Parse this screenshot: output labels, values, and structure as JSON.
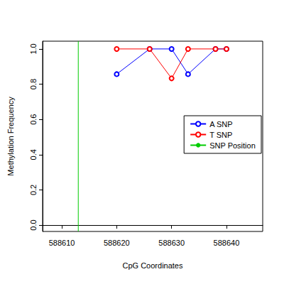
{
  "chart_data": {
    "type": "line",
    "x_label": "CpG Coordinates",
    "y_label": "Methylation Frequency",
    "xlim": [
      588606.5,
      588646.6
    ],
    "xticks": [
      588610,
      588620,
      588630,
      588640
    ],
    "ylim": [
      -0.036,
      1.044
    ],
    "yticks": [
      {
        "value": 0,
        "label": "0.0"
      },
      {
        "value": 0.2,
        "label": "0.2"
      },
      {
        "value": 0.4,
        "label": "0.4"
      },
      {
        "value": 0.6,
        "label": "0.6"
      },
      {
        "value": 0.8,
        "label": "0.8"
      },
      {
        "value": 1,
        "label": "1.0"
      }
    ],
    "grid": false,
    "legend": "right",
    "series": [
      {
        "name": "A SNP",
        "color": "#0000ff",
        "marker": "open_circle",
        "x": [
          588620,
          588626,
          588630,
          588633,
          588638,
          588640
        ],
        "values": [
          0.857,
          1.0,
          1.0,
          0.857,
          1.0,
          1.0
        ]
      },
      {
        "name": "T SNP",
        "color": "#ff0000",
        "marker": "open_circle",
        "x": [
          588620,
          588626,
          588630,
          588633,
          588638,
          588640
        ],
        "values": [
          1.0,
          1.0,
          0.833,
          1.0,
          1.0,
          1.0
        ]
      },
      {
        "name": "SNP Position",
        "color": "#00cc00",
        "type": "vline",
        "x": [
          588613
        ]
      }
    ]
  }
}
